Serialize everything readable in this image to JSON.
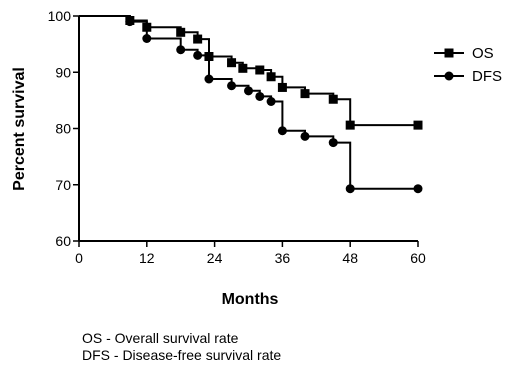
{
  "chart_data": {
    "type": "line",
    "title": "",
    "xlabel": "Months",
    "ylabel": "Percent survival",
    "xlim": [
      0,
      60
    ],
    "ylim": [
      60,
      100
    ],
    "xticks": [
      0,
      12,
      24,
      36,
      48,
      60
    ],
    "yticks": [
      60,
      70,
      80,
      90,
      100
    ],
    "grid": false,
    "legend_position": "top-right",
    "step": true,
    "series": [
      {
        "name": "OS",
        "marker": "square",
        "color": "#000000",
        "steps": [
          [
            0,
            100
          ],
          [
            9,
            100
          ],
          [
            9,
            99.2
          ],
          [
            12,
            99.2
          ],
          [
            12,
            98
          ],
          [
            18,
            98
          ],
          [
            18,
            97.1
          ],
          [
            21,
            97.1
          ],
          [
            21,
            95.9
          ],
          [
            23,
            95.9
          ],
          [
            23,
            92.8
          ],
          [
            27,
            92.8
          ],
          [
            27,
            91.7
          ],
          [
            29,
            91.7
          ],
          [
            29,
            90.7
          ],
          [
            32,
            90.7
          ],
          [
            32,
            90.4
          ],
          [
            34,
            90.4
          ],
          [
            34,
            89.2
          ],
          [
            36,
            89.2
          ],
          [
            36,
            87.3
          ],
          [
            40,
            87.3
          ],
          [
            40,
            86.2
          ],
          [
            45,
            86.2
          ],
          [
            45,
            85.2
          ],
          [
            48,
            85.2
          ],
          [
            48,
            80.6
          ],
          [
            60,
            80.6
          ]
        ],
        "markers": [
          [
            9,
            99.2
          ],
          [
            12,
            98
          ],
          [
            18,
            97.1
          ],
          [
            21,
            95.9
          ],
          [
            23,
            92.8
          ],
          [
            27,
            91.7
          ],
          [
            29,
            90.7
          ],
          [
            32,
            90.4
          ],
          [
            34,
            89.2
          ],
          [
            36,
            87.3
          ],
          [
            40,
            86.2
          ],
          [
            45,
            85.2
          ],
          [
            48,
            80.6
          ],
          [
            60,
            80.6
          ]
        ]
      },
      {
        "name": "DFS",
        "marker": "circle",
        "color": "#000000",
        "steps": [
          [
            0,
            100
          ],
          [
            9,
            100
          ],
          [
            9,
            99
          ],
          [
            12,
            99
          ],
          [
            12,
            96
          ],
          [
            18,
            96
          ],
          [
            18,
            94
          ],
          [
            21,
            94
          ],
          [
            21,
            93
          ],
          [
            23,
            93
          ],
          [
            23,
            88.8
          ],
          [
            27,
            88.8
          ],
          [
            27,
            87.6
          ],
          [
            30,
            87.6
          ],
          [
            30,
            86.7
          ],
          [
            32,
            86.7
          ],
          [
            32,
            85.7
          ],
          [
            34,
            85.7
          ],
          [
            34,
            84.8
          ],
          [
            36,
            84.8
          ],
          [
            36,
            79.6
          ],
          [
            40,
            79.6
          ],
          [
            40,
            78.6
          ],
          [
            45,
            78.6
          ],
          [
            45,
            77.5
          ],
          [
            48,
            77.5
          ],
          [
            48,
            69.3
          ],
          [
            60,
            69.3
          ]
        ],
        "markers": [
          [
            9,
            99
          ],
          [
            12,
            96
          ],
          [
            18,
            94
          ],
          [
            21,
            93
          ],
          [
            23,
            88.8
          ],
          [
            27,
            87.6
          ],
          [
            30,
            86.7
          ],
          [
            32,
            85.7
          ],
          [
            34,
            84.8
          ],
          [
            36,
            79.6
          ],
          [
            40,
            78.6
          ],
          [
            45,
            77.5
          ],
          [
            48,
            69.3
          ],
          [
            60,
            69.3
          ]
        ]
      }
    ]
  },
  "notes": [
    "OS - Overall survival rate",
    "DFS - Disease-free survival rate"
  ]
}
